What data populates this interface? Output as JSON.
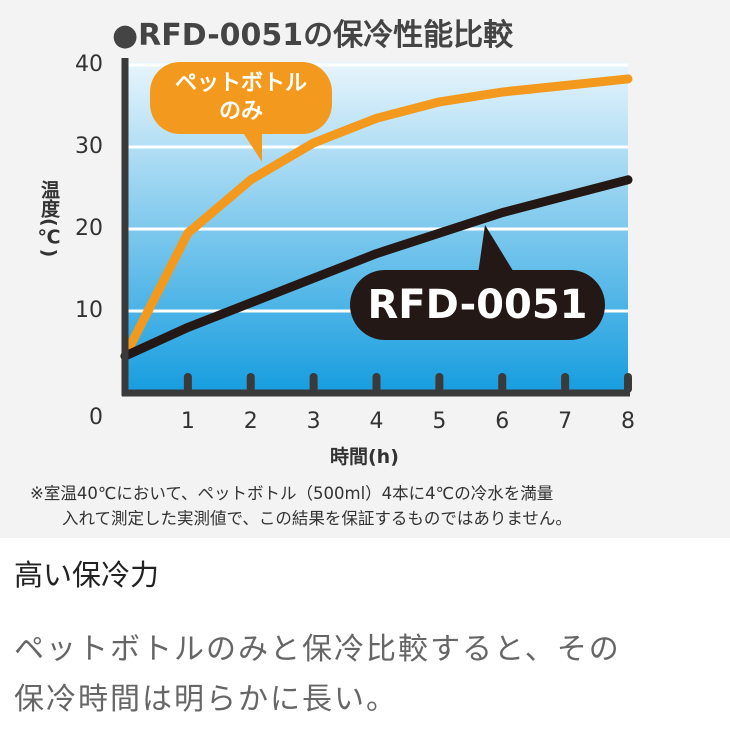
{
  "chart_data": {
    "type": "line",
    "title": "●RFD-0051の保冷性能比較",
    "x_label": "時間(h)",
    "y_label": "温度(℃)",
    "x": [
      0,
      1,
      2,
      3,
      4,
      5,
      6,
      7,
      8
    ],
    "series": [
      {
        "name": "ペットボトルのみ",
        "color": "#f39a1e",
        "values": [
          4.5,
          19.5,
          26,
          30.5,
          33.5,
          35.5,
          36.7,
          37.5,
          38.3
        ]
      },
      {
        "name": "RFD-0051",
        "color": "#231815",
        "values": [
          4.5,
          8,
          11,
          14,
          17,
          19.5,
          22,
          24,
          26
        ]
      }
    ],
    "xlim": [
      0,
      8
    ],
    "xticks": [
      1,
      2,
      3,
      4,
      5,
      6,
      7,
      8
    ],
    "ylim": [
      0,
      40
    ],
    "yticks": [
      0,
      10,
      20,
      30,
      40
    ],
    "grid": true,
    "note": [
      "※室温40℃において、ペットボトル（500ml）4本に4℃の冷水を満量",
      "入れて測定した実測値で、この結果を保証するものではありません。"
    ]
  },
  "section": {
    "heading": "高い保冷力",
    "body": [
      "ペットボトルのみと保冷比較すると、その",
      "保冷時間は明らかに長い。"
    ]
  }
}
